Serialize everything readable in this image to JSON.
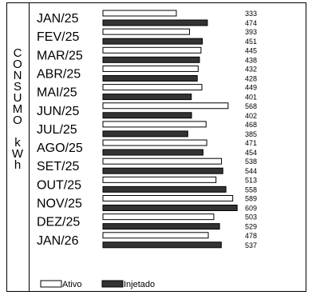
{
  "chart_data": {
    "type": "bar",
    "orientation": "horizontal",
    "ylabel_chars": [
      "C",
      "O",
      "N",
      "S",
      "U",
      "M",
      "O",
      "",
      "k",
      "W",
      "h"
    ],
    "categories": [
      "JAN/25",
      "FEV/25",
      "MAR/25",
      "ABR/25",
      "MAI/25",
      "JUN/25",
      "JUL/25",
      "AGO/25",
      "SET/25",
      "OUT/25",
      "NOV/25",
      "DEZ/25",
      "JAN/26"
    ],
    "series": [
      {
        "name": "Ativo",
        "color": "#ffffff",
        "values": [
          333,
          393,
          445,
          432,
          449,
          568,
          468,
          471,
          538,
          513,
          589,
          503,
          478
        ]
      },
      {
        "name": "Injetado",
        "color": "#333333",
        "values": [
          474,
          451,
          438,
          428,
          401,
          402,
          385,
          454,
          544,
          558,
          609,
          529,
          537
        ]
      }
    ],
    "xlim": [
      0,
      640
    ],
    "legend_position": "bottom-left",
    "grid": false
  }
}
